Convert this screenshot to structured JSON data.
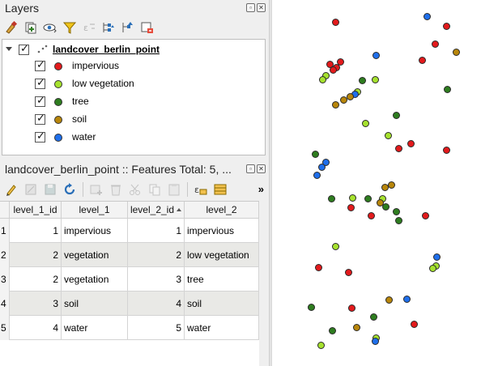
{
  "colors": {
    "impervious": "#e31a1c",
    "low_vegetation": "#a6e22e",
    "tree": "#2e7d1f",
    "soil": "#b8860b",
    "water": "#1f6feb"
  },
  "layers_panel": {
    "title": "Layers",
    "toolbar_icons": [
      "open-layer-styling-icon",
      "add-group-icon",
      "manage-visibility-icon",
      "filter-legend-icon",
      "filter-expression-icon",
      "expand-all-icon",
      "collapse-all-icon",
      "remove-layer-icon"
    ],
    "layer": {
      "name": "landcover_berlin_point",
      "checked": true,
      "classes": [
        {
          "label": "impervious",
          "color": "#e31a1c",
          "checked": true
        },
        {
          "label": "low vegetation",
          "color": "#a6e22e",
          "checked": true
        },
        {
          "label": "tree",
          "color": "#2e7d1f",
          "checked": true
        },
        {
          "label": "soil",
          "color": "#b8860b",
          "checked": true
        },
        {
          "label": "water",
          "color": "#1f6feb",
          "checked": true
        }
      ]
    }
  },
  "attribute_table": {
    "title": "landcover_berlin_point :: Features Total: 5, ...",
    "more_symbol": "»",
    "columns": [
      "level_1_id",
      "level_1",
      "level_2_id",
      "level_2"
    ],
    "rows": [
      {
        "n": "1",
        "level_1_id": "1",
        "level_1": "impervious",
        "level_2_id": "1",
        "level_2": "impervious"
      },
      {
        "n": "2",
        "level_1_id": "2",
        "level_1": "vegetation",
        "level_2_id": "2",
        "level_2": "low vegetation"
      },
      {
        "n": "3",
        "level_1_id": "2",
        "level_1": "vegetation",
        "level_2_id": "3",
        "level_2": "tree"
      },
      {
        "n": "4",
        "level_1_id": "3",
        "level_1": "soil",
        "level_2_id": "4",
        "level_2": "soil"
      },
      {
        "n": "5",
        "level_1_id": "4",
        "level_1": "water",
        "level_2_id": "5",
        "level_2": "water"
      }
    ]
  }
}
